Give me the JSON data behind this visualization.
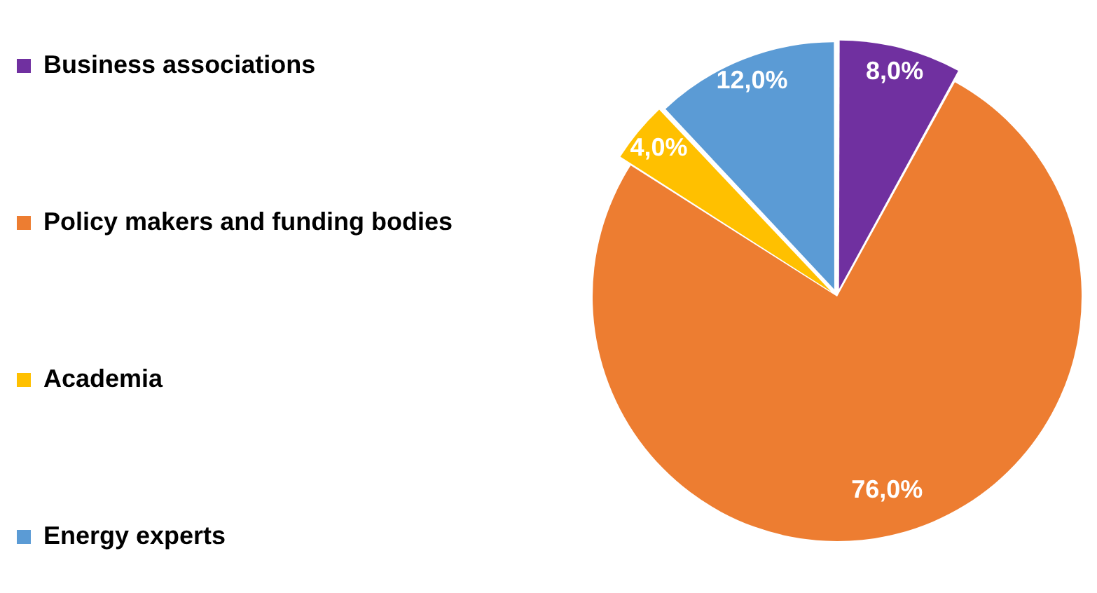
{
  "chart_data": {
    "type": "pie",
    "categories": [
      "Business associations",
      "Policy makers and funding bodies",
      "Academia",
      "Energy experts"
    ],
    "values": [
      8,
      76,
      4,
      12
    ],
    "colors": [
      "#7030a0",
      "#ed7d31",
      "#ffc000",
      "#5b9bd5"
    ],
    "value_labels": [
      "8,0%",
      "76,0%",
      "4,0%",
      "12,0%"
    ],
    "legend": "left"
  }
}
